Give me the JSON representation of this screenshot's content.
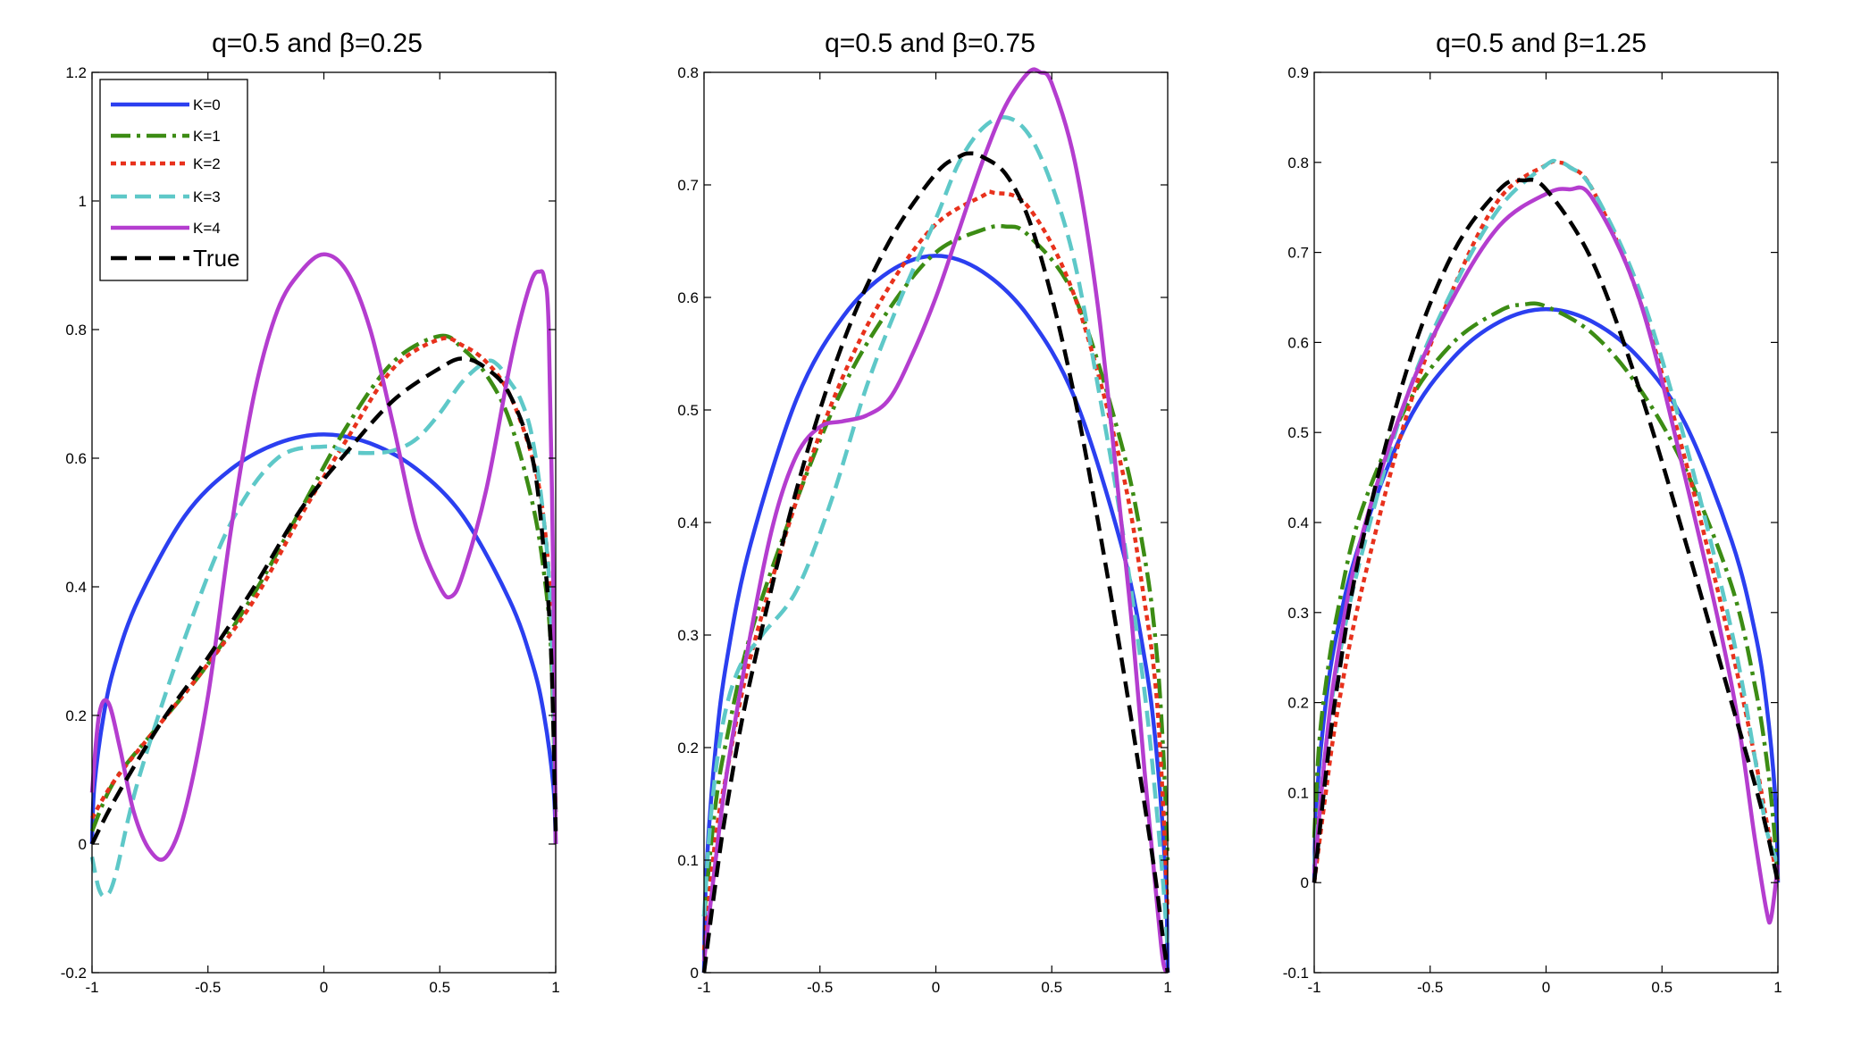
{
  "chart_data": [
    {
      "type": "line",
      "title": "q=0.5 and β=0.25",
      "xlim": [
        -1,
        1
      ],
      "ylim": [
        -0.2,
        1.2
      ],
      "xticks": [
        "-1",
        "-0.5",
        "0",
        "0.5",
        "1"
      ],
      "yticks": [
        "-0.2",
        "0",
        "0.2",
        "0.4",
        "0.6",
        "0.8",
        "1",
        "1.2"
      ],
      "legend": {
        "location": "top-left",
        "entries": [
          "K=0",
          "K=1",
          "K=2",
          "K=3",
          "K=4",
          "True"
        ]
      },
      "series": [
        {
          "name": "K=0",
          "color": "#2b3ff0",
          "style": "solid",
          "x": [
            -1,
            -0.99,
            -0.95,
            -0.9,
            -0.8,
            -0.6,
            -0.4,
            -0.2,
            0,
            0.2,
            0.4,
            0.6,
            0.8,
            0.9,
            0.95,
            0.99,
            1
          ],
          "y": [
            0,
            0.09,
            0.2,
            0.28,
            0.38,
            0.51,
            0.583,
            0.623,
            0.637,
            0.623,
            0.583,
            0.51,
            0.38,
            0.28,
            0.2,
            0.09,
            0
          ]
        },
        {
          "name": "K=1",
          "color": "#3c8c14",
          "style": "dashdot",
          "x": [
            -1,
            -0.9,
            -0.7,
            -0.5,
            -0.3,
            -0.1,
            0.1,
            0.3,
            0.5,
            0.6,
            0.7,
            0.8,
            0.9,
            0.95,
            0.98,
            1
          ],
          "y": [
            0.02,
            0.1,
            0.19,
            0.28,
            0.39,
            0.52,
            0.65,
            0.75,
            0.79,
            0.77,
            0.73,
            0.66,
            0.53,
            0.42,
            0.3,
            0.05
          ]
        },
        {
          "name": "K=2",
          "color": "#e8311c",
          "style": "dotted",
          "x": [
            -1,
            -0.9,
            -0.7,
            -0.5,
            -0.3,
            -0.1,
            0.1,
            0.3,
            0.5,
            0.6,
            0.7,
            0.8,
            0.9,
            0.95,
            0.98,
            1
          ],
          "y": [
            0.04,
            0.1,
            0.19,
            0.28,
            0.38,
            0.51,
            0.63,
            0.74,
            0.785,
            0.775,
            0.75,
            0.7,
            0.6,
            0.5,
            0.35,
            0.05
          ]
        },
        {
          "name": "K=3",
          "color": "#5ec8c8",
          "style": "dashed",
          "x": [
            -1,
            -0.97,
            -0.94,
            -0.9,
            -0.8,
            -0.6,
            -0.4,
            -0.2,
            0,
            0.1,
            0.2,
            0.3,
            0.4,
            0.5,
            0.6,
            0.7,
            0.75,
            0.8,
            0.85,
            0.9,
            0.95,
            0.98,
            1
          ],
          "y": [
            -0.02,
            -0.07,
            -0.08,
            -0.05,
            0.1,
            0.32,
            0.5,
            0.6,
            0.618,
            0.61,
            0.608,
            0.612,
            0.63,
            0.67,
            0.72,
            0.75,
            0.745,
            0.72,
            0.69,
            0.63,
            0.5,
            0.35,
            0.05
          ]
        },
        {
          "name": "K=4",
          "color": "#b43dcf",
          "style": "solid",
          "x": [
            -1,
            -0.97,
            -0.93,
            -0.88,
            -0.82,
            -0.75,
            -0.68,
            -0.6,
            -0.5,
            -0.4,
            -0.3,
            -0.2,
            -0.1,
            0,
            0.1,
            0.2,
            0.3,
            0.4,
            0.5,
            0.55,
            0.6,
            0.7,
            0.8,
            0.85,
            0.9,
            0.93,
            0.95,
            0.97,
            0.99,
            1
          ],
          "y": [
            0.08,
            0.2,
            0.22,
            0.15,
            0.05,
            -0.01,
            -0.02,
            0.05,
            0.23,
            0.49,
            0.7,
            0.83,
            0.89,
            0.917,
            0.89,
            0.8,
            0.65,
            0.49,
            0.4,
            0.385,
            0.42,
            0.55,
            0.74,
            0.82,
            0.88,
            0.89,
            0.88,
            0.8,
            0.4,
            0.0
          ]
        },
        {
          "name": "True",
          "color": "#000000",
          "style": "dashed",
          "x": [
            -1,
            -0.9,
            -0.7,
            -0.5,
            -0.3,
            -0.1,
            0.1,
            0.3,
            0.5,
            0.6,
            0.7,
            0.8,
            0.9,
            0.95,
            0.98,
            1
          ],
          "y": [
            0,
            0.07,
            0.19,
            0.29,
            0.4,
            0.52,
            0.61,
            0.69,
            0.74,
            0.755,
            0.74,
            0.7,
            0.6,
            0.45,
            0.3,
            0.02
          ]
        }
      ]
    },
    {
      "type": "line",
      "title": "q=0.5 and β=0.75",
      "xlim": [
        -1,
        1
      ],
      "ylim": [
        0,
        0.8
      ],
      "xticks": [
        "-1",
        "-0.5",
        "0",
        "0.5",
        "1"
      ],
      "yticks": [
        "0",
        "0.1",
        "0.2",
        "0.3",
        "0.4",
        "0.5",
        "0.6",
        "0.7",
        "0.8"
      ],
      "series": [
        {
          "name": "K=0",
          "color": "#2b3ff0",
          "style": "solid",
          "x": [
            -1,
            -0.99,
            -0.95,
            -0.9,
            -0.8,
            -0.6,
            -0.4,
            -0.2,
            0,
            0.2,
            0.4,
            0.6,
            0.8,
            0.9,
            0.95,
            0.99,
            1
          ],
          "y": [
            0,
            0.09,
            0.2,
            0.28,
            0.38,
            0.51,
            0.583,
            0.623,
            0.637,
            0.623,
            0.583,
            0.51,
            0.38,
            0.28,
            0.2,
            0.09,
            0
          ]
        },
        {
          "name": "K=1",
          "color": "#3c8c14",
          "style": "dashdot",
          "x": [
            -1,
            -0.95,
            -0.9,
            -0.8,
            -0.6,
            -0.4,
            -0.2,
            0,
            0.2,
            0.3,
            0.4,
            0.6,
            0.8,
            0.9,
            0.95,
            0.98,
            1
          ],
          "y": [
            0.05,
            0.15,
            0.21,
            0.3,
            0.42,
            0.52,
            0.59,
            0.64,
            0.66,
            0.663,
            0.655,
            0.6,
            0.47,
            0.37,
            0.29,
            0.2,
            0.1
          ]
        },
        {
          "name": "K=2",
          "color": "#e8311c",
          "style": "dotted",
          "x": [
            -1,
            -0.95,
            -0.9,
            -0.8,
            -0.6,
            -0.4,
            -0.2,
            0,
            0.2,
            0.25,
            0.4,
            0.6,
            0.8,
            0.9,
            0.95,
            0.98,
            1
          ],
          "y": [
            0.02,
            0.12,
            0.18,
            0.28,
            0.42,
            0.53,
            0.61,
            0.665,
            0.69,
            0.693,
            0.68,
            0.6,
            0.45,
            0.33,
            0.25,
            0.15,
            0.05
          ]
        },
        {
          "name": "K=3",
          "color": "#5ec8c8",
          "style": "dashed",
          "x": [
            -1,
            -0.97,
            -0.92,
            -0.85,
            -0.75,
            -0.6,
            -0.45,
            -0.3,
            -0.15,
            0,
            0.1,
            0.2,
            0.3,
            0.4,
            0.5,
            0.6,
            0.7,
            0.8,
            0.9,
            0.95,
            0.98,
            1
          ],
          "y": [
            0.05,
            0.14,
            0.22,
            0.27,
            0.3,
            0.34,
            0.42,
            0.52,
            0.6,
            0.67,
            0.72,
            0.75,
            0.76,
            0.745,
            0.7,
            0.63,
            0.52,
            0.4,
            0.25,
            0.15,
            0.08,
            0.02
          ]
        },
        {
          "name": "K=4",
          "color": "#b43dcf",
          "style": "solid",
          "x": [
            -1,
            -0.95,
            -0.9,
            -0.8,
            -0.7,
            -0.6,
            -0.5,
            -0.4,
            -0.3,
            -0.2,
            -0.1,
            0,
            0.1,
            0.2,
            0.3,
            0.4,
            0.45,
            0.5,
            0.6,
            0.7,
            0.8,
            0.85,
            0.9,
            0.95,
            0.98,
            1
          ],
          "y": [
            0.01,
            0.1,
            0.18,
            0.3,
            0.4,
            0.46,
            0.485,
            0.49,
            0.495,
            0.51,
            0.55,
            0.6,
            0.66,
            0.72,
            0.77,
            0.8,
            0.8,
            0.79,
            0.72,
            0.59,
            0.4,
            0.3,
            0.18,
            0.07,
            0.01,
            0
          ]
        },
        {
          "name": "True",
          "color": "#000000",
          "style": "dashed",
          "x": [
            -1,
            -0.95,
            -0.9,
            -0.8,
            -0.6,
            -0.4,
            -0.2,
            0,
            0.1,
            0.15,
            0.2,
            0.3,
            0.4,
            0.5,
            0.6,
            0.7,
            0.8,
            0.9,
            0.95,
            0.98,
            1
          ],
          "y": [
            0,
            0.08,
            0.15,
            0.26,
            0.43,
            0.56,
            0.65,
            0.71,
            0.725,
            0.728,
            0.725,
            0.71,
            0.67,
            0.6,
            0.51,
            0.4,
            0.28,
            0.15,
            0.08,
            0.03,
            0
          ]
        }
      ]
    },
    {
      "type": "line",
      "title": "q=0.5 and β=1.25",
      "xlim": [
        -1,
        1
      ],
      "ylim": [
        -0.1,
        0.9
      ],
      "xticks": [
        "-1",
        "-0.5",
        "0",
        "0.5",
        "1"
      ],
      "yticks": [
        "-0.1",
        "0",
        "0.1",
        "0.2",
        "0.3",
        "0.4",
        "0.5",
        "0.6",
        "0.7",
        "0.8",
        "0.9"
      ],
      "series": [
        {
          "name": "K=0",
          "color": "#2b3ff0",
          "style": "solid",
          "x": [
            -1,
            -0.99,
            -0.95,
            -0.9,
            -0.8,
            -0.6,
            -0.4,
            -0.2,
            0,
            0.2,
            0.4,
            0.6,
            0.8,
            0.9,
            0.95,
            0.99,
            1
          ],
          "y": [
            0,
            0.09,
            0.2,
            0.28,
            0.38,
            0.51,
            0.583,
            0.623,
            0.637,
            0.623,
            0.583,
            0.51,
            0.38,
            0.28,
            0.2,
            0.09,
            0
          ]
        },
        {
          "name": "K=1",
          "color": "#3c8c14",
          "style": "dashdot",
          "x": [
            -1,
            -0.98,
            -0.95,
            -0.9,
            -0.8,
            -0.6,
            -0.4,
            -0.2,
            -0.1,
            0,
            0.2,
            0.4,
            0.6,
            0.8,
            0.9,
            0.95,
            0.98,
            1
          ],
          "y": [
            0.05,
            0.15,
            0.22,
            0.3,
            0.41,
            0.53,
            0.6,
            0.635,
            0.642,
            0.64,
            0.61,
            0.55,
            0.46,
            0.33,
            0.22,
            0.14,
            0.07,
            0
          ]
        },
        {
          "name": "K=2",
          "color": "#e8311c",
          "style": "dotted",
          "x": [
            -1,
            -0.95,
            -0.9,
            -0.8,
            -0.6,
            -0.4,
            -0.2,
            0,
            0.05,
            0.1,
            0.2,
            0.4,
            0.6,
            0.8,
            0.9,
            0.95,
            1
          ],
          "y": [
            0,
            0.1,
            0.19,
            0.32,
            0.52,
            0.66,
            0.76,
            0.797,
            0.8,
            0.795,
            0.77,
            0.65,
            0.47,
            0.26,
            0.14,
            0.07,
            0
          ]
        },
        {
          "name": "K=3",
          "color": "#5ec8c8",
          "style": "dashed",
          "x": [
            -1,
            -0.95,
            -0.9,
            -0.8,
            -0.6,
            -0.4,
            -0.2,
            0,
            0.05,
            0.1,
            0.2,
            0.4,
            0.6,
            0.8,
            0.9,
            0.95,
            1
          ],
          "y": [
            0.02,
            0.15,
            0.24,
            0.36,
            0.54,
            0.66,
            0.75,
            0.797,
            0.8,
            0.795,
            0.77,
            0.66,
            0.49,
            0.28,
            0.14,
            0.06,
            0.02
          ]
        },
        {
          "name": "K=4",
          "color": "#b43dcf",
          "style": "solid",
          "x": [
            -1,
            -0.95,
            -0.9,
            -0.8,
            -0.6,
            -0.4,
            -0.2,
            0,
            0.1,
            0.2,
            0.4,
            0.6,
            0.8,
            0.9,
            0.95,
            0.97,
            1
          ],
          "y": [
            0.01,
            0.15,
            0.25,
            0.38,
            0.54,
            0.65,
            0.73,
            0.765,
            0.77,
            0.76,
            0.65,
            0.45,
            0.22,
            0.05,
            -0.03,
            -0.04,
            0.02
          ]
        },
        {
          "name": "True",
          "color": "#000000",
          "style": "dashed",
          "x": [
            -1,
            -0.95,
            -0.9,
            -0.8,
            -0.6,
            -0.4,
            -0.2,
            -0.1,
            0,
            0.2,
            0.4,
            0.6,
            0.8,
            0.9,
            0.95,
            1
          ],
          "y": [
            0,
            0.12,
            0.22,
            0.37,
            0.57,
            0.7,
            0.77,
            0.78,
            0.77,
            0.69,
            0.55,
            0.38,
            0.2,
            0.11,
            0.06,
            0
          ]
        }
      ]
    }
  ]
}
